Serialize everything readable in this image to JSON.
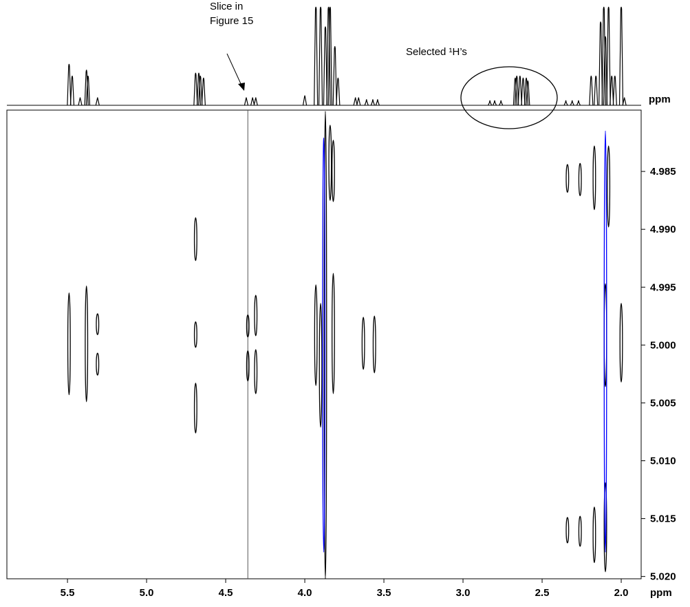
{
  "chart_data": {
    "type": "contour2d",
    "x_label": "ppm",
    "y_label": "ppm",
    "xlim": [
      5.883,
      1.874
    ],
    "ylim": [
      4.9797,
      5.0202
    ],
    "xticks": [
      5.5,
      {
        "value": 5.0,
        "label": "5.0"
      },
      4.5,
      {
        "value": 4.0,
        "label": "4.0"
      },
      3.5,
      {
        "value": 3.0,
        "label": "3.0"
      },
      2.5,
      {
        "value": 2.0,
        "label": "2.0"
      }
    ],
    "yticks": [
      4.985,
      {
        "value": 4.99,
        "label": "4.990"
      },
      4.995,
      {
        "value": 5.0,
        "label": "5.000"
      },
      5.005,
      {
        "value": 5.01,
        "label": "5.010"
      },
      5.015,
      {
        "value": 5.02,
        "label": "5.020"
      }
    ],
    "slice_x": 4.36,
    "annotations": [
      {
        "lines": [
          "Slice in",
          "Figure 15"
        ]
      },
      {
        "text": "Selected ¹H’s"
      }
    ],
    "spectrum": {
      "color": "#000000",
      "x": [
        5.49,
        5.47,
        5.42,
        5.38,
        5.37,
        5.31,
        4.69,
        4.67,
        4.66,
        4.64,
        4.37,
        4.33,
        4.31,
        4.0,
        3.93,
        3.9,
        3.87,
        3.85,
        3.84,
        3.81,
        3.79,
        3.68,
        3.66,
        3.61,
        3.57,
        3.54,
        2.83,
        2.8,
        2.76,
        2.67,
        2.66,
        2.64,
        2.62,
        2.6,
        2.59,
        2.35,
        2.31,
        2.27,
        2.19,
        2.16,
        2.13,
        2.11,
        2.1,
        2.08,
        2.06,
        2.04,
        2.0,
        1.98
      ],
      "height": [
        0.42,
        0.3,
        0.08,
        0.36,
        0.3,
        0.08,
        0.33,
        0.33,
        0.3,
        0.28,
        0.08,
        0.08,
        0.08,
        0.1,
        1.0,
        1.0,
        0.8,
        1.0,
        1.0,
        0.6,
        0.28,
        0.08,
        0.08,
        0.06,
        0.06,
        0.06,
        0.05,
        0.05,
        0.05,
        0.28,
        0.3,
        0.3,
        0.28,
        0.28,
        0.25,
        0.05,
        0.05,
        0.05,
        0.3,
        0.3,
        0.85,
        1.0,
        0.7,
        1.0,
        0.3,
        0.3,
        1.0,
        0.08
      ]
    },
    "contours": [
      {
        "color": "#000000",
        "x": [
          5.49,
          5.38,
          5.31,
          5.31,
          4.69,
          4.69,
          4.69,
          4.36,
          4.36,
          4.31,
          4.31,
          3.93,
          3.9,
          3.87,
          3.84,
          3.82,
          3.82,
          3.63,
          3.56,
          2.34,
          2.34,
          2.26,
          2.26,
          2.17,
          2.17,
          2.1,
          2.1,
          2.08,
          2.0
        ],
        "y_start": [
          4.9955,
          4.9949,
          4.9973,
          5.0007,
          4.989,
          4.998,
          5.0033,
          4.9974,
          5.0005,
          4.9957,
          5.0004,
          4.9948,
          4.9964,
          4.9798,
          4.981,
          4.9823,
          4.9938,
          4.9976,
          4.9975,
          4.9844,
          5.0149,
          4.9843,
          5.0148,
          4.9828,
          5.014,
          4.9947,
          5.0119,
          4.9828,
          4.9964
        ],
        "y_end": [
          5.0043,
          5.0049,
          4.9991,
          5.0026,
          4.9927,
          5.0002,
          5.0076,
          4.9993,
          5.0031,
          4.9992,
          5.0042,
          5.0035,
          5.0071,
          5.0202,
          4.9875,
          4.9876,
          5.0042,
          5.0021,
          5.0024,
          4.9868,
          5.0171,
          4.9871,
          5.0174,
          4.9883,
          5.0188,
          5.0036,
          5.0196,
          4.9898,
          5.0032
        ]
      },
      {
        "color": "#0000ff",
        "x": [
          3.88,
          2.1
        ],
        "y_start": [
          4.9821,
          4.9815
        ],
        "y_end": [
          5.0179,
          5.0179
        ]
      }
    ]
  }
}
